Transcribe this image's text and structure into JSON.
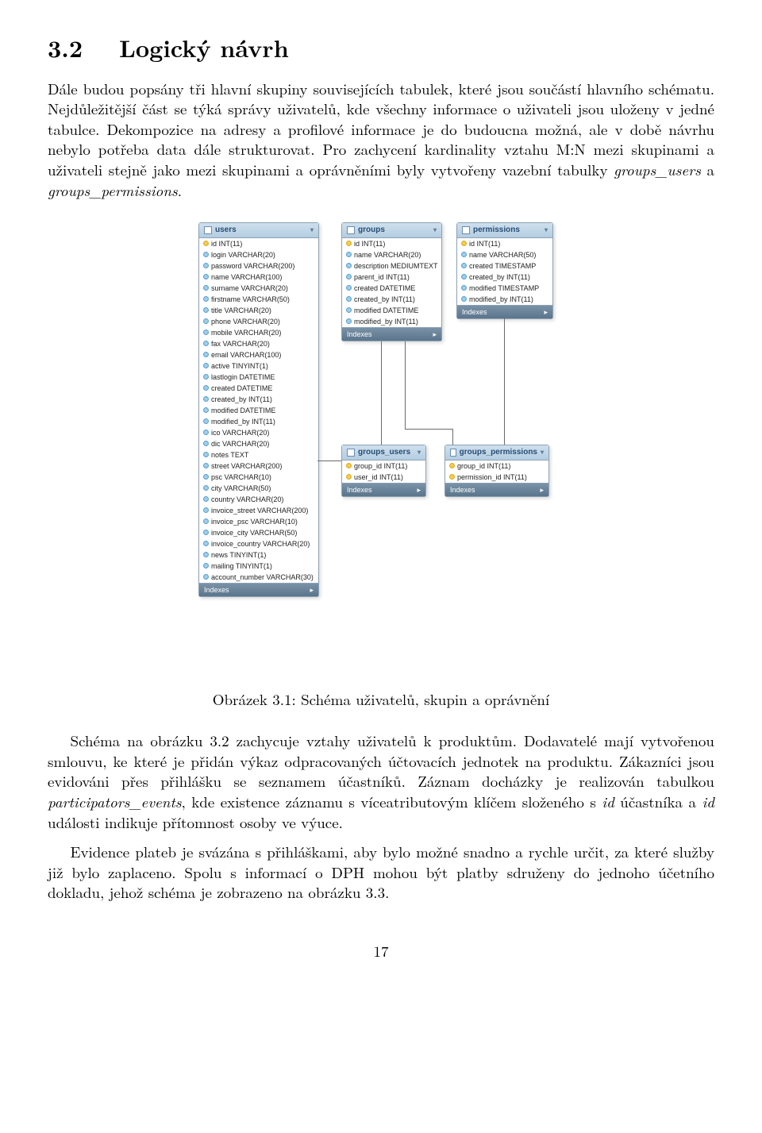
{
  "section": {
    "number": "3.2",
    "title": "Logický návrh"
  },
  "para1": "Dále budou popsány tři hlavní skupiny souvisejících tabulek, které jsou součástí hlavního schématu. Nejdůležitější část se týká správy uživatelů, kde všechny informace o uživateli jsou uloženy v jedné tabulce. Dekompozice na adresy a profilové informace je do budoucna možná, ale v době návrhu nebylo potřeba data dále strukturovat. Pro zachycení kardinality vztahu M:N mezi skupinami a uživateli stejně jako mezi skupinami a oprávněními byly vytvořeny vazební tabulky ",
  "para1_it1": "groups_users",
  "para1_mid": " a ",
  "para1_it2": "groups_permissions",
  "para1_end": ".",
  "caption": "Obrázek 3.1: Schéma uživatelů, skupin a oprávnění",
  "para2a": "Schéma na obrázku 3.2 zachycuje vztahy uživatelů k produktům. Dodavatelé mají vytvořenou smlouvu, ke které je přidán výkaz odpracovaných účtovacích jednotek na produktu. Zákazníci jsou evidováni přes přihlášku se seznamem účastníků. Záznam docházky je realizován tabulkou ",
  "para2_it1": "participators_events",
  "para2b": ", kde existence záznamu s víceatributovým klíčem složeného s ",
  "para2_it2": "id",
  "para2c": " účastníka a ",
  "para2_it3": "id",
  "para2d": " události indikuje přítomnost osoby ve výuce.",
  "para3": "Evidence plateb je svázána s přihláškami, aby bylo možné snadno a rychle určit, za které služby již bylo zaplaceno. Spolu s informací o DPH mohou být platby sdruženy do jednoho účetního dokladu, jehož schéma je zobrazeno na obrázku 3.3.",
  "pageno": "17",
  "tables": {
    "users": {
      "title": "users",
      "cols": [
        {
          "k": true,
          "t": "id INT(11)"
        },
        {
          "k": false,
          "t": "login VARCHAR(20)"
        },
        {
          "k": false,
          "t": "password VARCHAR(200)"
        },
        {
          "k": false,
          "t": "name VARCHAR(100)"
        },
        {
          "k": false,
          "t": "surname VARCHAR(20)"
        },
        {
          "k": false,
          "t": "firstname VARCHAR(50)"
        },
        {
          "k": false,
          "t": "title VARCHAR(20)"
        },
        {
          "k": false,
          "t": "phone VARCHAR(20)"
        },
        {
          "k": false,
          "t": "mobile VARCHAR(20)"
        },
        {
          "k": false,
          "t": "fax VARCHAR(20)"
        },
        {
          "k": false,
          "t": "email VARCHAR(100)"
        },
        {
          "k": false,
          "t": "active TINYINT(1)"
        },
        {
          "k": false,
          "t": "lastlogin DATETIME"
        },
        {
          "k": false,
          "t": "created DATETIME"
        },
        {
          "k": false,
          "t": "created_by INT(11)"
        },
        {
          "k": false,
          "t": "modified DATETIME"
        },
        {
          "k": false,
          "t": "modified_by INT(11)"
        },
        {
          "k": false,
          "t": "ico VARCHAR(20)"
        },
        {
          "k": false,
          "t": "dic VARCHAR(20)"
        },
        {
          "k": false,
          "t": "notes TEXT"
        },
        {
          "k": false,
          "t": "street VARCHAR(200)"
        },
        {
          "k": false,
          "t": "psc VARCHAR(10)"
        },
        {
          "k": false,
          "t": "city VARCHAR(50)"
        },
        {
          "k": false,
          "t": "country VARCHAR(20)"
        },
        {
          "k": false,
          "t": "invoice_street VARCHAR(200)"
        },
        {
          "k": false,
          "t": "invoice_psc VARCHAR(10)"
        },
        {
          "k": false,
          "t": "invoice_city VARCHAR(50)"
        },
        {
          "k": false,
          "t": "invoice_country VARCHAR(20)"
        },
        {
          "k": false,
          "t": "news TINYINT(1)"
        },
        {
          "k": false,
          "t": "mailing TINYINT(1)"
        },
        {
          "k": false,
          "t": "account_number VARCHAR(30)"
        }
      ]
    },
    "groups": {
      "title": "groups",
      "cols": [
        {
          "k": true,
          "t": "id INT(11)"
        },
        {
          "k": false,
          "t": "name VARCHAR(20)"
        },
        {
          "k": false,
          "t": "description MEDIUMTEXT"
        },
        {
          "k": false,
          "t": "parent_id INT(11)"
        },
        {
          "k": false,
          "t": "created DATETIME"
        },
        {
          "k": false,
          "t": "created_by INT(11)"
        },
        {
          "k": false,
          "t": "modified DATETIME"
        },
        {
          "k": false,
          "t": "modified_by INT(11)"
        }
      ]
    },
    "permissions": {
      "title": "permissions",
      "cols": [
        {
          "k": true,
          "t": "id INT(11)"
        },
        {
          "k": false,
          "t": "name VARCHAR(50)"
        },
        {
          "k": false,
          "t": "created TIMESTAMP"
        },
        {
          "k": false,
          "t": "created_by INT(11)"
        },
        {
          "k": false,
          "t": "modified TIMESTAMP"
        },
        {
          "k": false,
          "t": "modified_by INT(11)"
        }
      ]
    },
    "groups_users": {
      "title": "groups_users",
      "cols": [
        {
          "k": true,
          "t": "group_id INT(11)"
        },
        {
          "k": true,
          "t": "user_id INT(11)"
        }
      ]
    },
    "groups_permissions": {
      "title": "groups_permissions",
      "cols": [
        {
          "k": true,
          "t": "group_id INT(11)"
        },
        {
          "k": true,
          "t": "permission_id INT(11)"
        }
      ]
    }
  },
  "idx_label": "Indexes",
  "style": {
    "header_bg": "#cfe0ee",
    "border": "#8fa2b5",
    "idx_bg": "#5a758c",
    "line": "#6b6b6b"
  }
}
